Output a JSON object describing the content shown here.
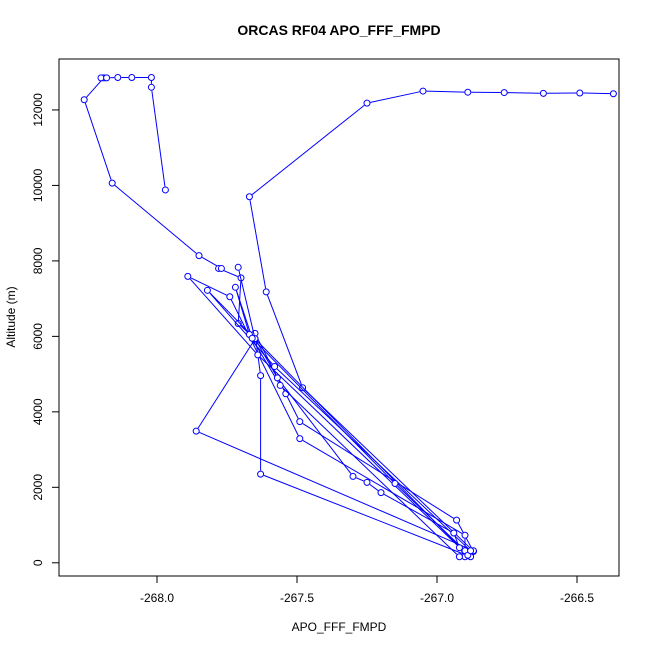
{
  "chart_data": {
    "type": "line",
    "title": "ORCAS RF04 APO_FFF_FMPD",
    "xlabel": "APO_FFF_FMPD",
    "ylabel": "Altitude (m)",
    "xlim": [
      -268.35,
      -266.35
    ],
    "ylim": [
      -350,
      13350
    ],
    "xticks": [
      -268.0,
      -267.5,
      -267.0,
      -266.5
    ],
    "xtick_labels": [
      "-268.0",
      "-267.5",
      "-267.0",
      "-266.5"
    ],
    "yticks": [
      0,
      2000,
      4000,
      6000,
      8000,
      10000,
      12000
    ],
    "ytick_labels": [
      "0",
      "2000",
      "4000",
      "6000",
      "8000",
      "10000",
      "12000"
    ],
    "grid": false,
    "legend": "none",
    "color": "#0000ff",
    "marker": "open-circle",
    "series": [
      {
        "points": [
          [
            -266.37,
            12430
          ],
          [
            -266.49,
            12450
          ],
          [
            -266.62,
            12440
          ],
          [
            -266.76,
            12460
          ],
          [
            -266.89,
            12470
          ],
          [
            -267.05,
            12500
          ],
          [
            -267.25,
            12180
          ],
          [
            -267.67,
            9700
          ],
          [
            -267.61,
            7180
          ],
          [
            -267.48,
            4640
          ],
          [
            -266.87,
            310
          ],
          [
            -266.87,
            300
          ],
          [
            -266.93,
            1130
          ],
          [
            -267.49,
            3740
          ],
          [
            -267.54,
            4480
          ],
          [
            -267.65,
            6080
          ],
          [
            -267.63,
            4960
          ],
          [
            -267.63,
            2350
          ],
          [
            -266.88,
            160
          ],
          [
            -266.87,
            320
          ],
          [
            -267.86,
            3490
          ],
          [
            -267.65,
            5930
          ],
          [
            -267.71,
            6340
          ],
          [
            -267.7,
            7550
          ],
          [
            -267.78,
            7800
          ],
          [
            -267.77,
            7800
          ],
          [
            -267.85,
            8140
          ],
          [
            -268.16,
            10060
          ],
          [
            -268.26,
            12270
          ],
          [
            -268.19,
            12850
          ],
          [
            -268.2,
            12850
          ],
          [
            -268.18,
            12850
          ],
          [
            -268.14,
            12860
          ],
          [
            -268.09,
            12860
          ],
          [
            -268.02,
            12860
          ],
          [
            -268.02,
            12600
          ],
          [
            -267.97,
            9880
          ]
        ]
      },
      {
        "points": [
          [
            -267.71,
            7830
          ],
          [
            -267.65,
            5940
          ],
          [
            -267.57,
            4900
          ],
          [
            -267.3,
            2290
          ],
          [
            -267.25,
            2130
          ],
          [
            -267.2,
            1860
          ],
          [
            -266.94,
            790
          ],
          [
            -266.92,
            400
          ],
          [
            -266.9,
            160
          ],
          [
            -266.92,
            160
          ],
          [
            -267.56,
            4700
          ],
          [
            -267.67,
            6050
          ],
          [
            -267.72,
            7300
          ],
          [
            -267.66,
            5950
          ],
          [
            -267.15,
            2100
          ],
          [
            -266.9,
            320
          ],
          [
            -266.9,
            730
          ],
          [
            -267.49,
            3290
          ],
          [
            -267.74,
            7050
          ],
          [
            -267.89,
            7590
          ],
          [
            -267.64,
            5510
          ],
          [
            -266.89,
            200
          ],
          [
            -267.82,
            7220
          ],
          [
            -267.58,
            5200
          ],
          [
            -266.88,
            320
          ]
        ]
      }
    ]
  }
}
